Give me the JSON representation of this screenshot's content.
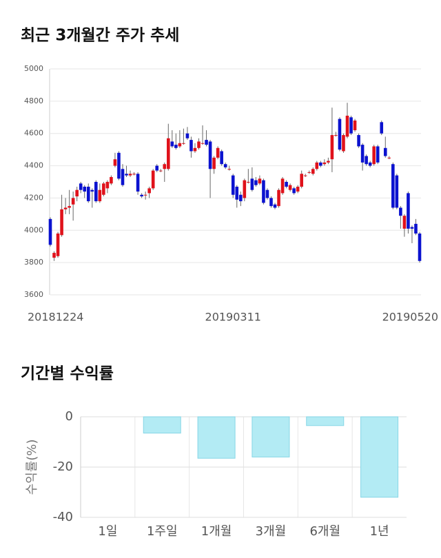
{
  "chart_data": [
    {
      "type": "candlestick",
      "title": "최근 3개월간 주가 추세",
      "categories": [
        "20181224",
        null,
        null,
        null,
        null,
        null,
        null,
        null,
        null,
        null,
        null,
        null,
        null,
        null,
        null,
        null,
        null,
        null,
        null,
        null,
        null,
        null,
        null,
        null,
        null,
        null,
        null,
        null,
        null,
        null,
        null,
        null,
        null,
        null,
        null,
        null,
        null,
        null,
        null,
        null,
        null,
        null,
        null,
        null,
        null,
        null,
        null,
        null,
        "20190311",
        null,
        null,
        null,
        null,
        null,
        null,
        null,
        null,
        null,
        null,
        null,
        null,
        null,
        null,
        null,
        null,
        null,
        null,
        null,
        null,
        null,
        null,
        null,
        null,
        null,
        null,
        null,
        null,
        null,
        null,
        null,
        null,
        null,
        null,
        null,
        null,
        null,
        null,
        null,
        null,
        null,
        null,
        null,
        null,
        null,
        null,
        null,
        null,
        "20190520"
      ],
      "open": [
        4070,
        3830,
        3840,
        3970,
        4130,
        4140,
        4160,
        4210,
        4290,
        4270,
        4270,
        4250,
        4300,
        4180,
        4220,
        4260,
        4290,
        4400,
        4480,
        4380,
        4350,
        4340,
        4350,
        4350,
        4220,
        4220,
        4230,
        4260,
        4400,
        4370,
        4380,
        4380,
        4550,
        4530,
        4520,
        4540,
        4600,
        4560,
        4490,
        4510,
        4540,
        4560,
        4550,
        4380,
        4450,
        4490,
        4410,
        4380,
        4340,
        4270,
        4220,
        4200,
        4300,
        4320,
        4310,
        4290,
        4310,
        4250,
        4200,
        4160,
        4150,
        4230,
        4300,
        4250,
        4260,
        4240,
        4270,
        4340,
        4360,
        4350,
        4380,
        4420,
        4410,
        4420,
        4440,
        4590,
        4690,
        4490,
        4580,
        4700,
        4620,
        4590,
        4530,
        4460,
        4420,
        4410,
        4520,
        4670,
        4510,
        4450,
        4410,
        4340,
        4140,
        4010,
        4230,
        4020,
        4040,
        3980
      ],
      "high": [
        4080,
        3870,
        3990,
        4220,
        4200,
        4250,
        4240,
        4270,
        4300,
        4280,
        4290,
        4260,
        4310,
        4290,
        4300,
        4310,
        4340,
        4480,
        4490,
        4410,
        4400,
        4370,
        4360,
        4360,
        4230,
        4240,
        4270,
        4380,
        4410,
        4380,
        4420,
        4660,
        4620,
        4600,
        4620,
        4630,
        4640,
        4580,
        4540,
        4570,
        4650,
        4620,
        4560,
        4460,
        4520,
        4500,
        4420,
        4400,
        4350,
        4280,
        4240,
        4320,
        4380,
        4390,
        4330,
        4340,
        4320,
        4260,
        4210,
        4170,
        4260,
        4330,
        4310,
        4290,
        4270,
        4280,
        4370,
        4350,
        4370,
        4390,
        4430,
        4430,
        4440,
        4450,
        4760,
        4610,
        4700,
        4600,
        4790,
        4710,
        4690,
        4600,
        4540,
        4470,
        4430,
        4530,
        4530,
        4680,
        4580,
        4460,
        4420,
        4350,
        4150,
        4100,
        4240,
        4030,
        4070,
        3990
      ],
      "low": [
        3900,
        3810,
        3830,
        3960,
        4100,
        4100,
        4060,
        4180,
        4230,
        4200,
        4170,
        4140,
        4170,
        4170,
        4210,
        4230,
        4280,
        4390,
        4310,
        4270,
        4330,
        4330,
        4340,
        4220,
        4200,
        4190,
        4200,
        4250,
        4360,
        4360,
        4300,
        4370,
        4510,
        4500,
        4510,
        4530,
        4560,
        4450,
        4480,
        4500,
        4530,
        4520,
        4200,
        4350,
        4440,
        4400,
        4380,
        4370,
        4200,
        4140,
        4150,
        4180,
        4290,
        4240,
        4270,
        4280,
        4160,
        4190,
        4140,
        4130,
        4140,
        4220,
        4260,
        4240,
        4220,
        4230,
        4260,
        4330,
        4350,
        4340,
        4370,
        4390,
        4400,
        4410,
        4360,
        4580,
        4490,
        4480,
        4570,
        4590,
        4610,
        4510,
        4370,
        4400,
        4390,
        4400,
        4410,
        4590,
        4450,
        4440,
        4130,
        4130,
        4010,
        3960,
        3980,
        3920,
        3970,
        3800
      ],
      "close": [
        3910,
        3860,
        3980,
        4130,
        4140,
        4150,
        4200,
        4250,
        4250,
        4240,
        4180,
        4240,
        4180,
        4250,
        4290,
        4300,
        4330,
        4440,
        4320,
        4280,
        4340,
        4350,
        4350,
        4240,
        4210,
        4220,
        4260,
        4370,
        4370,
        4370,
        4410,
        4570,
        4520,
        4510,
        4540,
        4540,
        4570,
        4490,
        4510,
        4550,
        4540,
        4530,
        4380,
        4450,
        4510,
        4410,
        4390,
        4380,
        4220,
        4190,
        4180,
        4310,
        4300,
        4250,
        4280,
        4320,
        4170,
        4200,
        4150,
        4140,
        4250,
        4320,
        4270,
        4280,
        4230,
        4270,
        4350,
        4340,
        4360,
        4380,
        4420,
        4400,
        4420,
        4430,
        4590,
        4590,
        4500,
        4590,
        4710,
        4600,
        4680,
        4520,
        4420,
        4410,
        4400,
        4520,
        4420,
        4600,
        4460,
        4450,
        4140,
        4140,
        4090,
        4090,
        4010,
        4010,
        3980,
        3810
      ],
      "up_color": "#e0121b",
      "down_color": "#0b12cf",
      "ylim": [
        3600,
        5000
      ],
      "yticks": [
        3600,
        3800,
        4000,
        4200,
        4400,
        4600,
        4800,
        5000
      ],
      "grid": true
    },
    {
      "type": "bar",
      "title": "기간별 수익률",
      "categories": [
        "1일",
        "1주일",
        "1개월",
        "3개월",
        "6개월",
        "1년"
      ],
      "values": [
        0,
        -6.5,
        -16.5,
        -16,
        -3.5,
        -32
      ],
      "color": "#b3ebf4",
      "ylabel": "수익률(%)",
      "ylim": [
        -40,
        0
      ],
      "yticks": [
        0,
        -20,
        -40
      ],
      "grid": true
    }
  ]
}
